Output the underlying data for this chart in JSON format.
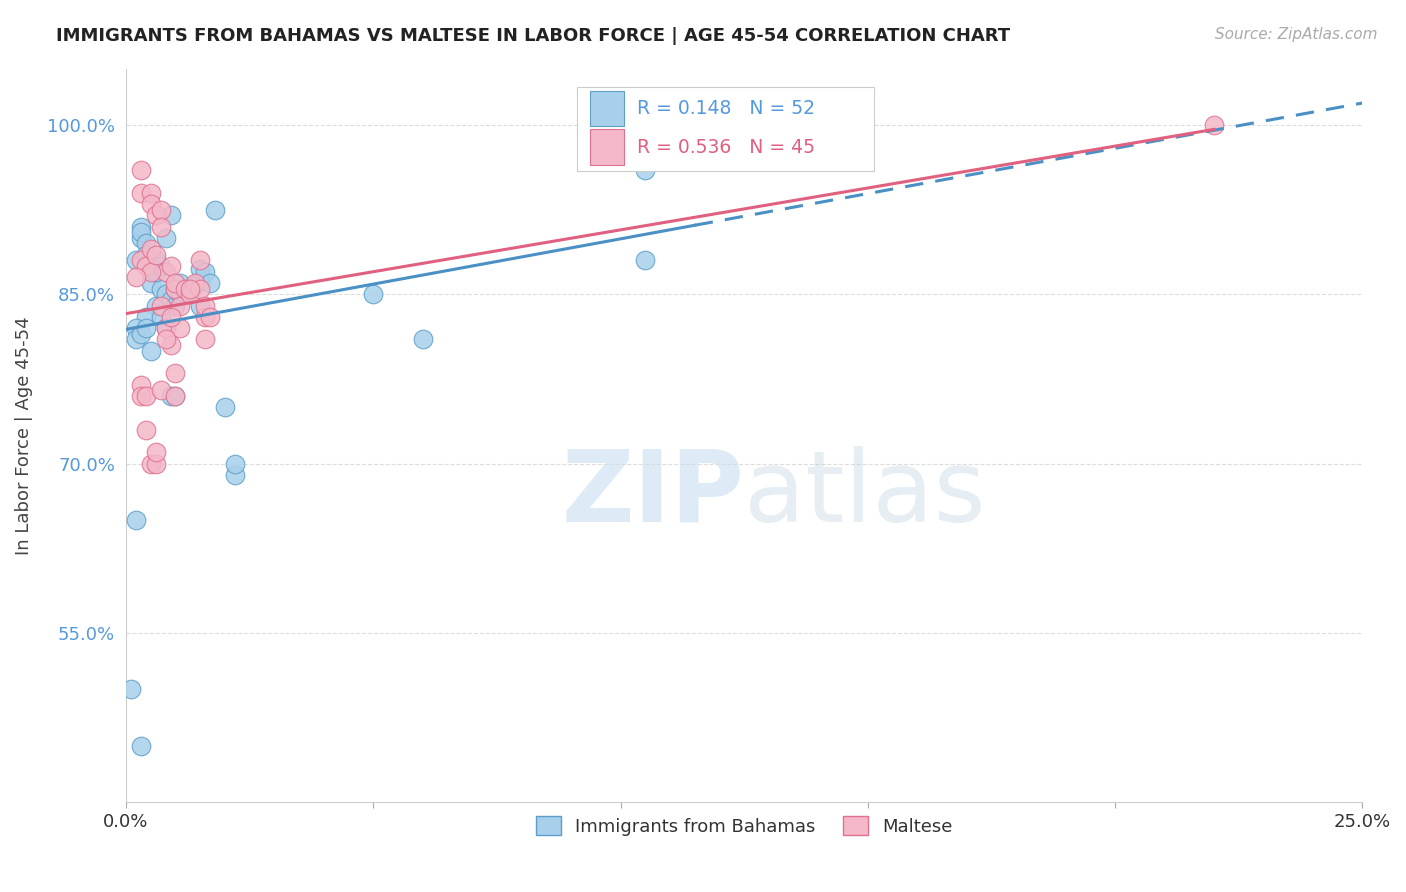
{
  "title": "IMMIGRANTS FROM BAHAMAS VS MALTESE IN LABOR FORCE | AGE 45-54 CORRELATION CHART",
  "source": "Source: ZipAtlas.com",
  "ylabel": "In Labor Force | Age 45-54",
  "xlim": [
    0.0,
    0.25
  ],
  "ylim": [
    0.4,
    1.05
  ],
  "yticks": [
    0.55,
    0.7,
    0.85,
    1.0
  ],
  "ytick_labels": [
    "55.0%",
    "70.0%",
    "85.0%",
    "100.0%"
  ],
  "xticks": [
    0.0,
    0.05,
    0.1,
    0.15,
    0.2,
    0.25
  ],
  "xtick_labels": [
    "0.0%",
    "",
    "",
    "",
    "",
    "25.0%"
  ],
  "blue_color": "#a8d0eb",
  "pink_color": "#f4b8c8",
  "blue_edge_color": "#5b9ec9",
  "pink_edge_color": "#e07090",
  "blue_line_color": "#4a90c4",
  "pink_line_color": "#e06080",
  "blue_scatter_x": [
    0.005,
    0.005,
    0.003,
    0.002,
    0.006,
    0.004,
    0.007,
    0.008,
    0.009,
    0.01,
    0.01,
    0.011,
    0.011,
    0.012,
    0.012,
    0.013,
    0.014,
    0.015,
    0.015,
    0.015,
    0.003,
    0.003,
    0.004,
    0.004,
    0.005,
    0.006,
    0.006,
    0.007,
    0.008,
    0.009,
    0.002,
    0.002,
    0.003,
    0.004,
    0.005,
    0.007,
    0.008,
    0.009,
    0.01,
    0.016,
    0.017,
    0.018,
    0.02,
    0.022,
    0.022,
    0.105,
    0.105,
    0.05,
    0.06,
    0.001,
    0.003,
    0.002
  ],
  "blue_scatter_y": [
    0.87,
    0.86,
    0.9,
    0.88,
    0.84,
    0.83,
    0.855,
    0.85,
    0.845,
    0.84,
    0.855,
    0.85,
    0.86,
    0.855,
    0.85,
    0.855,
    0.858,
    0.862,
    0.872,
    0.84,
    0.91,
    0.905,
    0.895,
    0.885,
    0.875,
    0.88,
    0.87,
    0.875,
    0.9,
    0.92,
    0.82,
    0.81,
    0.815,
    0.82,
    0.8,
    0.83,
    0.82,
    0.76,
    0.76,
    0.87,
    0.86,
    0.925,
    0.75,
    0.69,
    0.7,
    0.96,
    0.88,
    0.85,
    0.81,
    0.5,
    0.45,
    0.65
  ],
  "pink_scatter_x": [
    0.003,
    0.003,
    0.005,
    0.005,
    0.006,
    0.007,
    0.007,
    0.008,
    0.009,
    0.01,
    0.01,
    0.011,
    0.012,
    0.013,
    0.014,
    0.015,
    0.016,
    0.016,
    0.017,
    0.003,
    0.004,
    0.005,
    0.005,
    0.006,
    0.007,
    0.008,
    0.009,
    0.01,
    0.011,
    0.003,
    0.003,
    0.004,
    0.004,
    0.005,
    0.006,
    0.006,
    0.007,
    0.008,
    0.009,
    0.01,
    0.015,
    0.013,
    0.016,
    0.22,
    0.002
  ],
  "pink_scatter_y": [
    0.96,
    0.94,
    0.94,
    0.93,
    0.92,
    0.925,
    0.91,
    0.87,
    0.875,
    0.855,
    0.86,
    0.84,
    0.855,
    0.85,
    0.86,
    0.855,
    0.83,
    0.84,
    0.83,
    0.88,
    0.875,
    0.87,
    0.89,
    0.885,
    0.84,
    0.82,
    0.805,
    0.78,
    0.82,
    0.77,
    0.76,
    0.76,
    0.73,
    0.7,
    0.7,
    0.71,
    0.765,
    0.81,
    0.83,
    0.76,
    0.88,
    0.855,
    0.81,
    1.0,
    0.865
  ],
  "watermark_zip": "ZIP",
  "watermark_atlas": "atlas",
  "background_color": "#ffffff",
  "grid_color": "#dddddd",
  "legend_blue_r": "R = 0.148",
  "legend_blue_n": "N = 52",
  "legend_pink_r": "R = 0.536",
  "legend_pink_n": "N = 45",
  "legend_blue_label": "Immigrants from Bahamas",
  "legend_pink_label": "Maltese",
  "ytick_color": "#5599dd",
  "xtick_color": "#333333"
}
